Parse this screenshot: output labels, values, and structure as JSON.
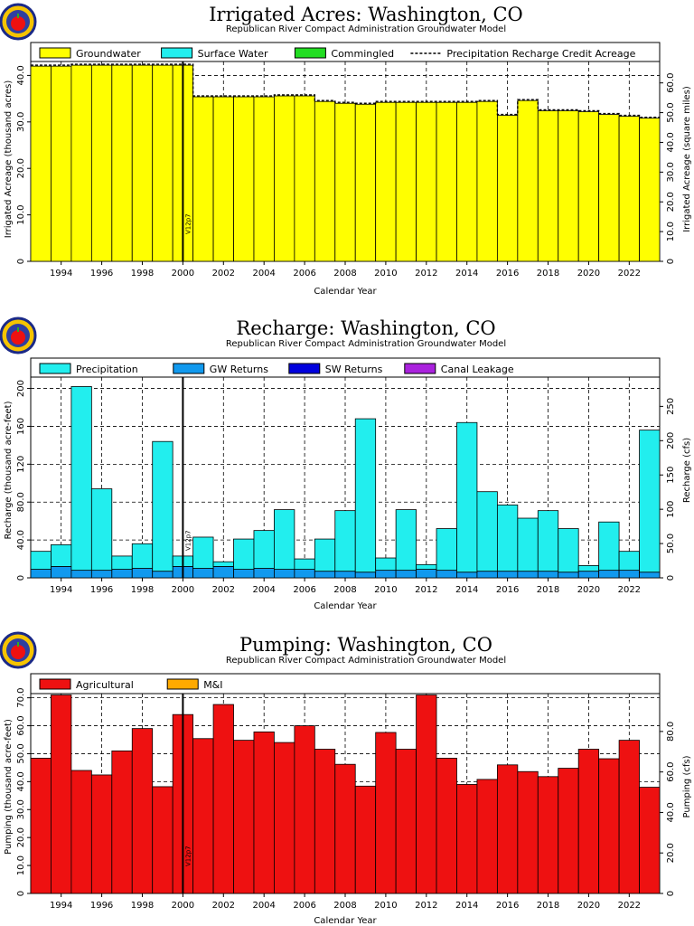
{
  "chart_data": [
    {
      "type": "bar",
      "title": "Irrigated Acres: Washington, CO",
      "subtitle": "Republican River Compact Administration Groundwater Model",
      "xlabel": "Calendar Year",
      "ylabel": "Irrigated Acreage (thousand acres)",
      "y2label": "Irrigated Acreage (square miles)",
      "x_start": 1993,
      "x_end": 2023,
      "xticks": [
        "1994",
        "1996",
        "1998",
        "2000",
        "2002",
        "2004",
        "2006",
        "2008",
        "2010",
        "2012",
        "2014",
        "2016",
        "2018",
        "2020",
        "2022"
      ],
      "ylim": [
        0,
        43
      ],
      "yticks": [
        "0",
        "10.0",
        "20.0",
        "30.0",
        "40.0"
      ],
      "ytick_values": [
        0,
        10,
        20,
        30,
        40
      ],
      "y2lim": [
        0,
        67.2
      ],
      "y2ticks": [
        "0",
        "10.0",
        "20.0",
        "30.0",
        "40.0",
        "50.0",
        "60.0"
      ],
      "y2tick_values": [
        0,
        10,
        20,
        30,
        40,
        50,
        60
      ],
      "legend": [
        "Groundwater",
        "Surface Water",
        "Commingled",
        "Precipitation Recharge Credit Acreage"
      ],
      "legend_colors": [
        "#ffff00",
        "#22eeee",
        "#22dd22",
        "#000000"
      ],
      "series": [
        {
          "name": "Groundwater",
          "color": "#ffff00",
          "values": [
            42.0,
            42.0,
            42.2,
            42.2,
            42.2,
            42.2,
            42.2,
            42.2,
            35.4,
            35.4,
            35.4,
            35.4,
            35.6,
            35.6,
            34.4,
            34.0,
            33.8,
            34.2,
            34.2,
            34.2,
            34.2,
            34.2,
            34.4,
            31.4,
            34.6,
            32.4,
            32.4,
            32.2,
            31.6,
            31.2,
            30.8
          ]
        }
      ],
      "line_series": {
        "name": "Precipitation Recharge Credit Acreage",
        "values": [
          42.2,
          42.2,
          42.4,
          42.4,
          42.4,
          42.4,
          42.4,
          42.4,
          35.6,
          35.6,
          35.6,
          35.6,
          35.8,
          35.8,
          34.6,
          34.2,
          34.0,
          34.4,
          34.4,
          34.4,
          34.4,
          34.4,
          34.6,
          31.6,
          34.8,
          32.6,
          32.6,
          32.4,
          31.8,
          31.4,
          31.0
        ]
      },
      "marker": {
        "x": 2000.5,
        "label": "V12p7"
      }
    },
    {
      "type": "bar",
      "title": "Recharge: Washington, CO",
      "subtitle": "Republican River Compact Administration Groundwater Model",
      "xlabel": "Calendar Year",
      "ylabel": "Recharge (thousand acre-feet)",
      "y2label": "Recharge (cfs)",
      "x_start": 1993,
      "x_end": 2023,
      "xticks": [
        "1994",
        "1996",
        "1998",
        "2000",
        "2002",
        "2004",
        "2006",
        "2008",
        "2010",
        "2012",
        "2014",
        "2016",
        "2018",
        "2020",
        "2022"
      ],
      "ylim": [
        0,
        212
      ],
      "yticks": [
        "0",
        "40.0",
        "80.0",
        "120",
        "160",
        "200"
      ],
      "ytick_values": [
        0,
        40,
        80,
        120,
        160,
        200
      ],
      "y2lim": [
        0,
        292.7
      ],
      "y2ticks": [
        "0",
        "50.0",
        "100",
        "150",
        "200",
        "250"
      ],
      "y2tick_values": [
        0,
        50,
        100,
        150,
        200,
        250
      ],
      "legend": [
        "Precipitation",
        "GW Returns",
        "SW Returns",
        "Canal Leakage"
      ],
      "legend_colors": [
        "#22eeee",
        "#1199ee",
        "#0000dd",
        "#aa22dd"
      ],
      "series": [
        {
          "name": "GW Returns",
          "color": "#1199ee",
          "values": [
            9,
            12,
            8,
            8,
            9,
            10,
            7,
            12,
            10,
            12,
            9,
            10,
            9,
            9,
            7,
            7,
            6,
            8,
            8,
            9,
            8,
            6,
            7,
            7,
            7,
            7,
            6,
            7,
            8,
            8,
            6
          ]
        },
        {
          "name": "Precipitation",
          "color": "#22eeee",
          "values": [
            19,
            23,
            194,
            86,
            14,
            26,
            137,
            11,
            33,
            5,
            32,
            40,
            63,
            11,
            34,
            64,
            162,
            13,
            64,
            5,
            44,
            158,
            84,
            70,
            56,
            64,
            46,
            6,
            51,
            20,
            150
          ]
        }
      ],
      "marker": {
        "x": 2000.5,
        "label": "V12p7"
      }
    },
    {
      "type": "bar",
      "title": "Pumping: Washington, CO",
      "subtitle": "Republican River Compact Administration Groundwater Model",
      "xlabel": "Calendar Year",
      "ylabel": "Pumping (thousand acre-feet)",
      "y2label": "Pumping (cfs)",
      "x_start": 1993,
      "x_end": 2023,
      "xticks": [
        "1994",
        "1996",
        "1998",
        "2000",
        "2002",
        "2004",
        "2006",
        "2008",
        "2010",
        "2012",
        "2014",
        "2016",
        "2018",
        "2020",
        "2022"
      ],
      "ylim": [
        0,
        71.5
      ],
      "yticks": [
        "0",
        "10.0",
        "20.0",
        "30.0",
        "40.0",
        "50.0",
        "60.0",
        "70.0"
      ],
      "ytick_values": [
        0,
        10,
        20,
        30,
        40,
        50,
        60,
        70
      ],
      "y2lim": [
        0,
        98.7
      ],
      "y2ticks": [
        "0",
        "20.0",
        "40.0",
        "60.0",
        "80.0"
      ],
      "y2tick_values": [
        0,
        20,
        40,
        60,
        80
      ],
      "legend": [
        "Agricultural",
        "M&I"
      ],
      "legend_colors": [
        "#ee1111",
        "#ffaa00"
      ],
      "series": [
        {
          "name": "Agricultural",
          "color": "#ee1111",
          "values": [
            48.4,
            71.0,
            44.0,
            42.4,
            51.0,
            59.0,
            38.2,
            64.0,
            55.4,
            67.6,
            54.8,
            57.8,
            54.0,
            60.0,
            51.6,
            46.2,
            38.4,
            57.6,
            51.6,
            71.0,
            48.4,
            39.0,
            40.8,
            46.0,
            43.6,
            41.8,
            44.8,
            51.6,
            48.2,
            54.8,
            38.0
          ]
        }
      ],
      "marker": {
        "x": 2000.5,
        "label": "V12p7"
      }
    }
  ]
}
